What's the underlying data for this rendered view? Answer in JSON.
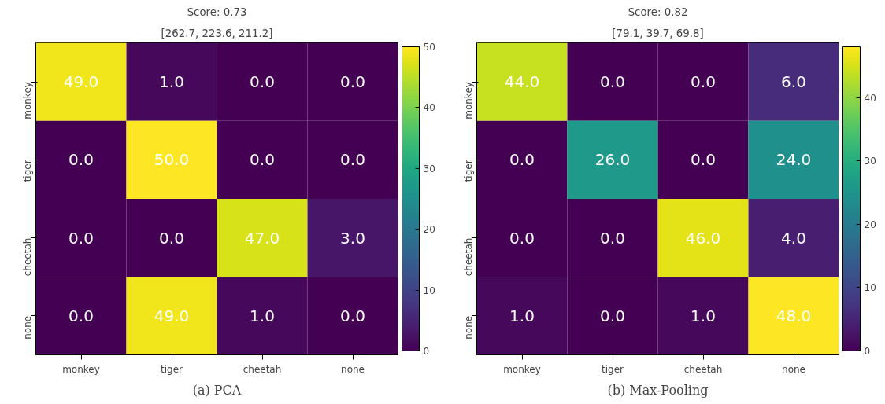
{
  "chart_data": [
    {
      "type": "heatmap",
      "title": "Score: 0.73",
      "subtitle": "[262.7, 223.6, 211.2]",
      "categories": [
        "monkey",
        "tiger",
        "cheetah",
        "none"
      ],
      "y_categories": [
        "monkey",
        "tiger",
        "cheetah",
        "none"
      ],
      "cells": [
        [
          49,
          1,
          0,
          0
        ],
        [
          0,
          50,
          0,
          0
        ],
        [
          0,
          0,
          47,
          3
        ],
        [
          0,
          49,
          1,
          0
        ]
      ],
      "cell_labels": [
        [
          "49.0",
          "1.0",
          "0.0",
          "0.0"
        ],
        [
          "0.0",
          "50.0",
          "0.0",
          "0.0"
        ],
        [
          "0.0",
          "0.0",
          "47.0",
          "3.0"
        ],
        [
          "0.0",
          "49.0",
          "1.0",
          "0.0"
        ]
      ],
      "clim": [
        0,
        50
      ],
      "cticks": [
        0,
        10,
        20,
        30,
        40,
        50
      ],
      "grid": false,
      "annotations": [
        "(a) PCA"
      ]
    },
    {
      "type": "heatmap",
      "title": "Score: 0.82",
      "subtitle": "[79.1, 39.7, 69.8]",
      "categories": [
        "monkey",
        "tiger",
        "cheetah",
        "none"
      ],
      "y_categories": [
        "monkey",
        "tiger",
        "cheetah",
        "none"
      ],
      "cells": [
        [
          44,
          0,
          0,
          6
        ],
        [
          0,
          26,
          0,
          24
        ],
        [
          0,
          0,
          46,
          4
        ],
        [
          1,
          0,
          1,
          48
        ]
      ],
      "cell_labels": [
        [
          "44.0",
          "0.0",
          "0.0",
          "6.0"
        ],
        [
          "0.0",
          "26.0",
          "0.0",
          "24.0"
        ],
        [
          "0.0",
          "0.0",
          "46.0",
          "4.0"
        ],
        [
          "1.0",
          "0.0",
          "1.0",
          "48.0"
        ]
      ],
      "clim": [
        0,
        48
      ],
      "cticks": [
        0,
        10,
        20,
        30,
        40
      ],
      "grid": false,
      "annotations": [
        "(b) Max-Pooling"
      ]
    }
  ]
}
